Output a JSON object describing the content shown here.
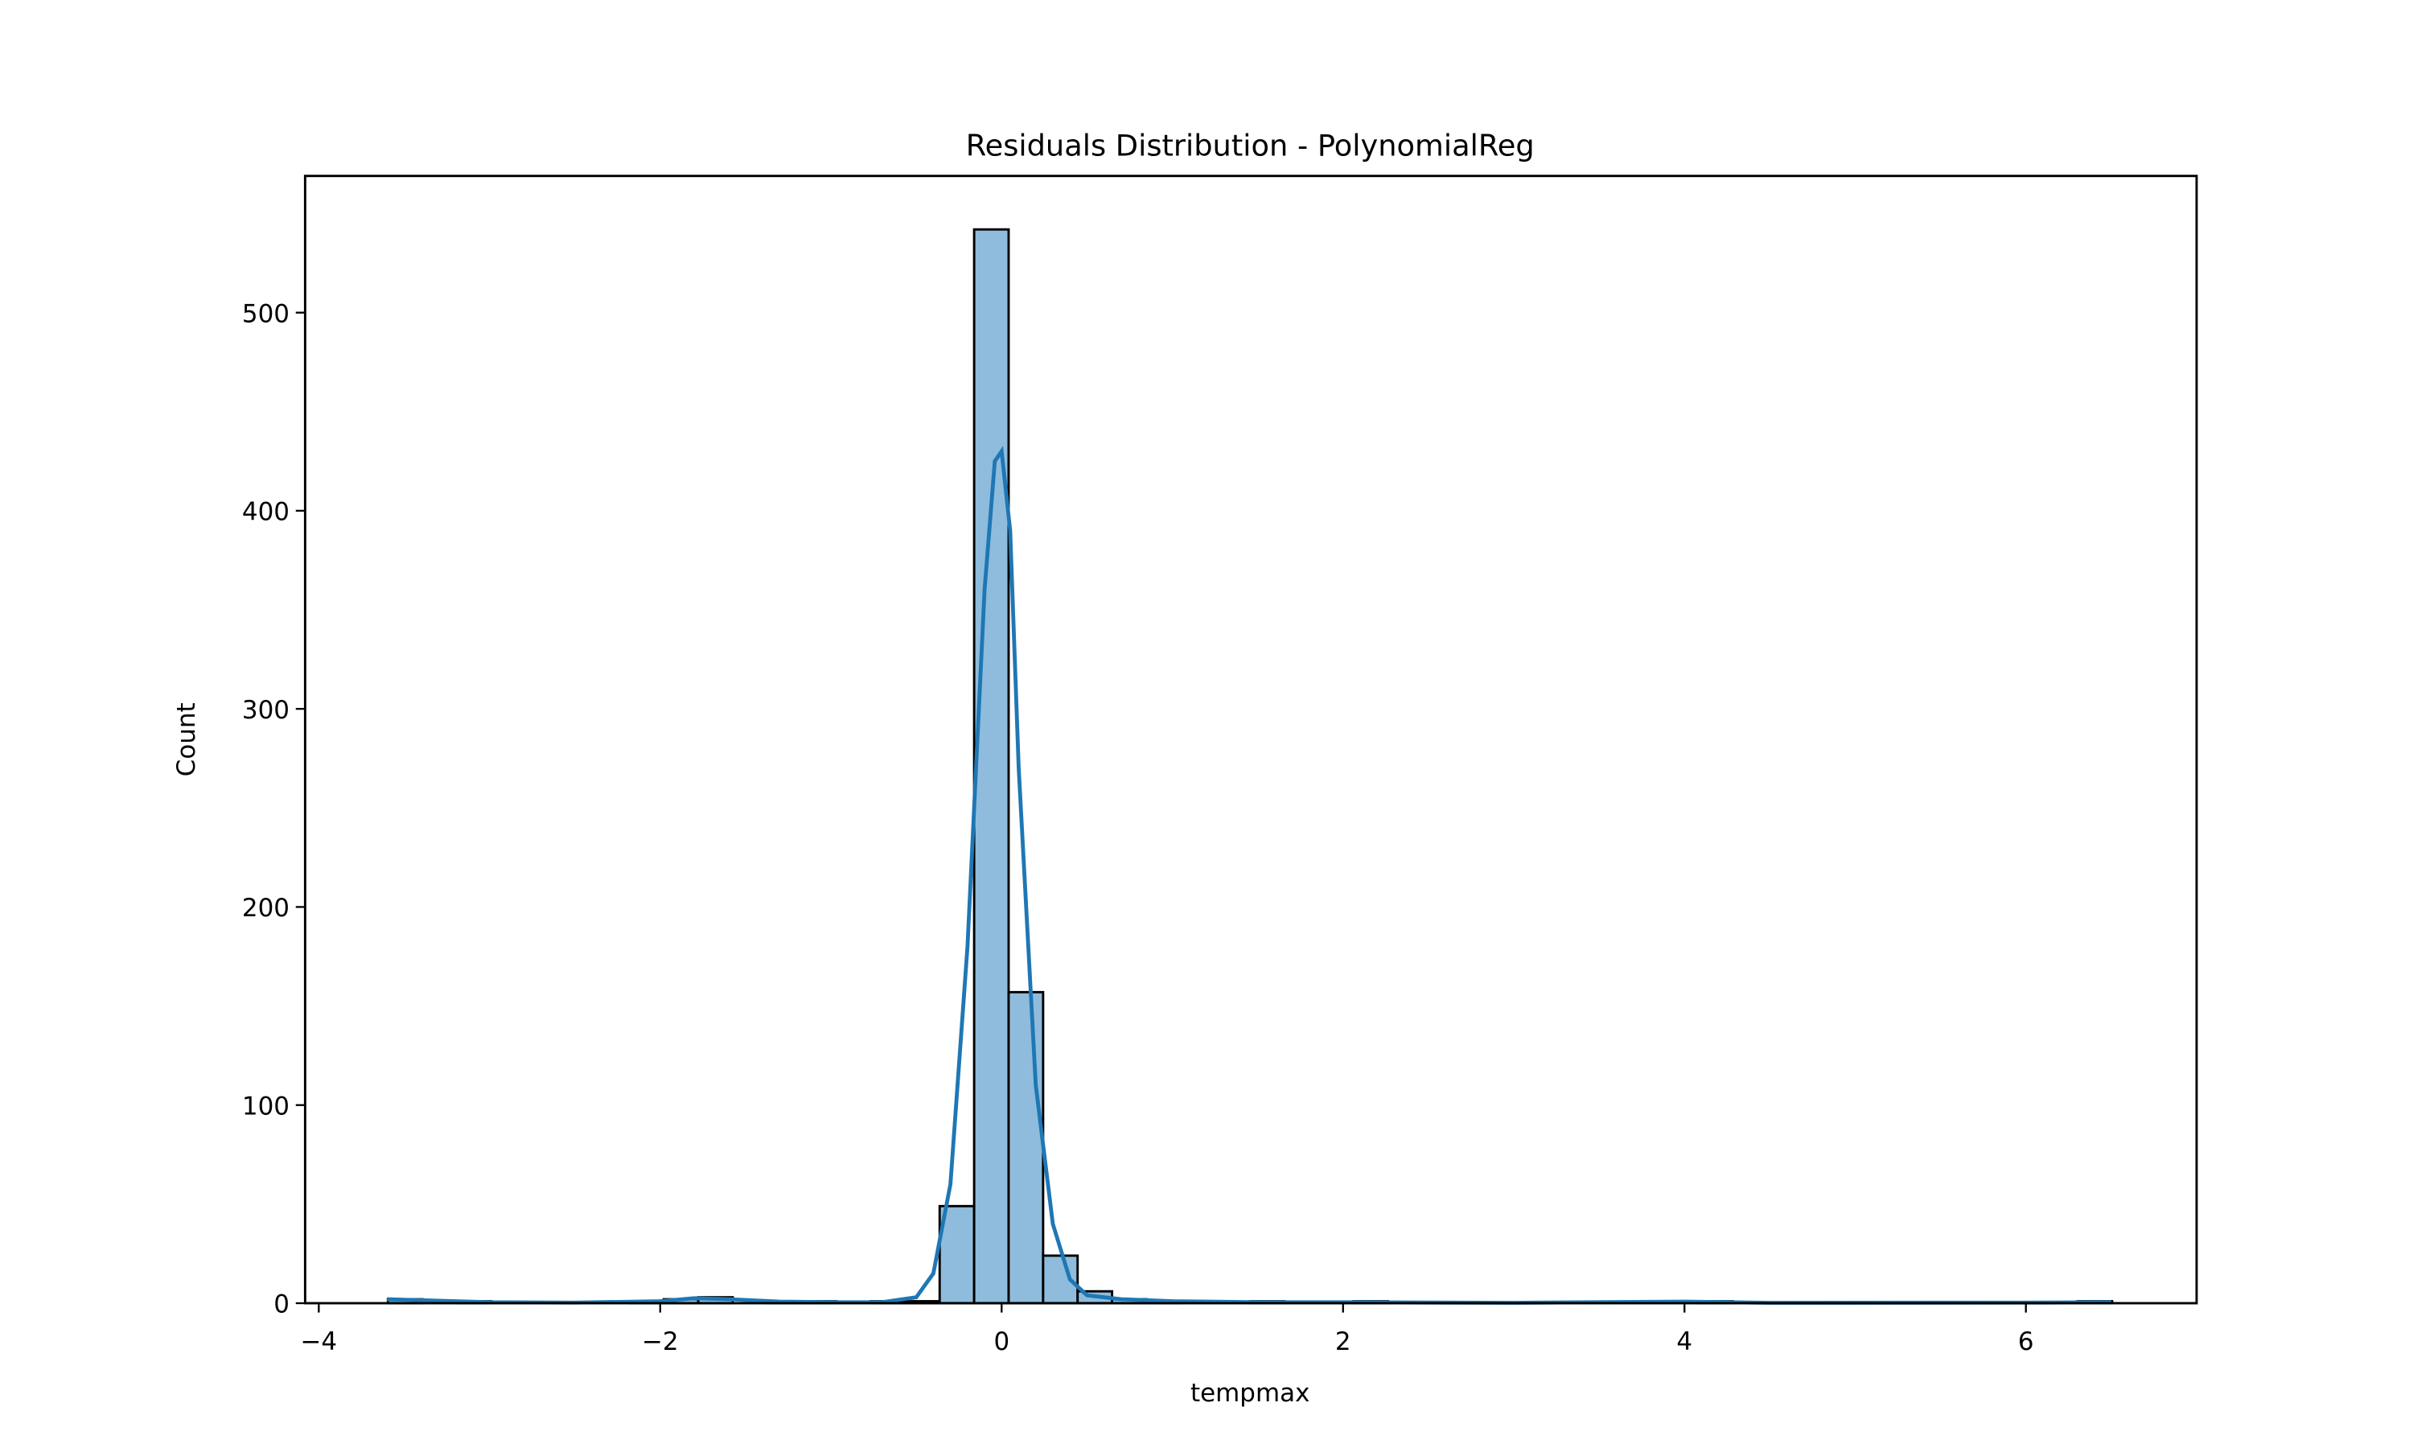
{
  "chart_data": {
    "type": "histogram",
    "title": "Residuals Distribution - PolynomialReg",
    "x_label": "tempmax",
    "y_label": "Count",
    "bins": [
      -3.595,
      -3.393,
      -3.191,
      -2.989,
      -2.787,
      -2.585,
      -2.383,
      -2.181,
      -1.979,
      -1.777,
      -1.575,
      -1.373,
      -1.171,
      -0.969,
      -0.767,
      -0.565,
      -0.363,
      -0.161,
      0.041,
      0.243,
      0.445,
      0.647,
      0.849,
      1.051,
      1.253,
      1.455,
      1.657,
      1.859,
      2.061,
      2.263,
      2.465,
      2.667,
      2.869,
      3.071,
      3.273,
      3.475,
      3.677,
      3.879,
      4.081,
      4.283,
      4.485,
      4.687,
      4.889,
      5.091,
      5.293,
      5.495,
      5.697,
      5.899,
      6.101,
      6.303,
      6.505
    ],
    "values": [
      2,
      0,
      1,
      0,
      0,
      0,
      0,
      1,
      2,
      3,
      0,
      1,
      1,
      0,
      1,
      1,
      49,
      542,
      157,
      24,
      6,
      2,
      1,
      0,
      0,
      1,
      0,
      0,
      1,
      0,
      0,
      0,
      0,
      0,
      0,
      0,
      0,
      0,
      1,
      0,
      0,
      0,
      0,
      0,
      0,
      0,
      0,
      0,
      0,
      1
    ],
    "color": "#8fbcdc",
    "edge_color": "#000000",
    "kde": {
      "color": "#1f77b4",
      "x": [
        -3.6,
        -3.4,
        -3,
        -2.5,
        -2,
        -1.8,
        -1.6,
        -1.3,
        -1,
        -0.7,
        -0.5,
        -0.4,
        -0.3,
        -0.2,
        -0.1,
        -0.04,
        0,
        0.05,
        0.1,
        0.2,
        0.3,
        0.4,
        0.5,
        0.7,
        1,
        1.5,
        2,
        3,
        4,
        4.5,
        6,
        6.5
      ],
      "y": [
        2,
        1.5,
        0.5,
        0.3,
        1,
        2.5,
        2,
        0.8,
        0.5,
        0.5,
        3,
        15,
        60,
        180,
        360,
        425,
        430,
        390,
        270,
        110,
        40,
        12,
        4,
        2,
        1,
        0.5,
        0.5,
        0.2,
        0.8,
        0.2,
        0.3,
        0.5
      ]
    },
    "xlim": [
      -4.08,
      7.0
    ],
    "ylim": [
      0,
      569
    ],
    "xticks": [
      {
        "value": -4,
        "label": "−4"
      },
      {
        "value": -2,
        "label": "−2"
      },
      0,
      2,
      4,
      6
    ],
    "yticks": [
      0,
      100,
      200,
      300,
      400,
      500
    ]
  }
}
